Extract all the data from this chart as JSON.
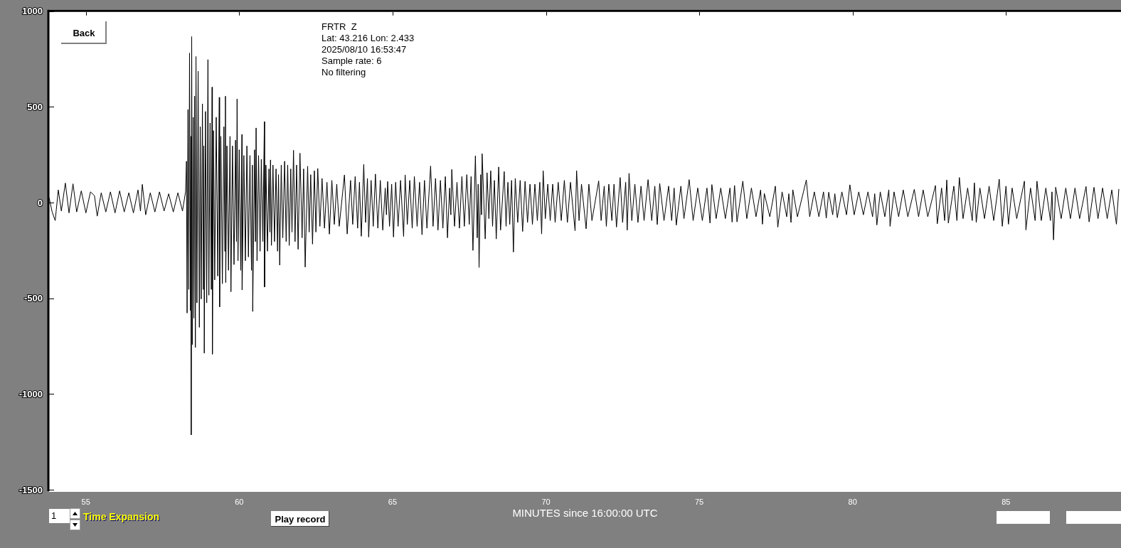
{
  "chart_data": {
    "type": "line",
    "title": "FRTR  Z",
    "annotations": [
      "Lat: 43.216 Lon: 2.433",
      "2025/08/10 16:53:47",
      "Sample rate: 6",
      "No filtering",
      "Back",
      "1",
      "Time Expansion",
      "Play record"
    ],
    "xlabel": "MINUTES since 16:00:00 UTC",
    "color": "#000000",
    "xlim": [
      53.8,
      88.75
    ],
    "xticks": [
      55,
      60,
      65,
      70,
      75,
      80,
      85
    ],
    "ylim": [
      -1500,
      1000
    ],
    "yticks": [
      -1500,
      -1000,
      -500,
      0,
      500,
      1000
    ],
    "x": [
      53.8,
      53.9,
      54,
      54.1,
      54.2,
      54.33,
      54.45,
      54.58,
      54.7,
      54.85,
      55,
      55.15,
      55.28,
      55.37,
      55.5,
      55.65,
      55.8,
      55.95,
      56.1,
      56.25,
      56.4,
      56.55,
      56.7,
      56.78,
      56.84,
      56.95,
      57.1,
      57.25,
      57.4,
      57.55,
      57.7,
      57.85,
      58,
      58.15,
      58.25,
      58.28,
      58.3,
      58.33,
      58.355,
      58.38,
      58.41,
      58.425,
      58.432,
      58.45,
      58.47,
      58.5,
      58.52,
      58.545,
      58.57,
      58.59,
      58.62,
      58.66,
      58.7,
      58.73,
      58.76,
      58.8,
      58.83,
      58.845,
      58.86,
      58.9,
      58.94,
      58.98,
      59.01,
      59.05,
      59.09,
      59.115,
      59.125,
      59.16,
      59.2,
      59.25,
      59.3,
      59.35,
      59.36,
      59.4,
      59.45,
      59.5,
      59.53,
      59.55,
      59.56,
      59.6,
      59.65,
      59.7,
      59.73,
      59.78,
      59.83,
      59.88,
      59.91,
      59.93,
      59.96,
      60,
      60.05,
      60.09,
      60.095,
      60.15,
      60.2,
      60.25,
      60.3,
      60.35,
      60.4,
      60.43,
      60.44,
      60.5,
      60.53,
      60.55,
      60.58,
      60.63,
      60.68,
      60.72,
      60.77,
      60.82,
      60.825,
      60.87,
      60.92,
      60.97,
      61,
      61.02,
      61.05,
      61.1,
      61.15,
      61.2,
      61.25,
      61.28,
      61.32,
      61.37,
      61.42,
      61.48,
      61.53,
      61.58,
      61.63,
      61.68,
      61.72,
      61.77,
      61.82,
      61.87,
      61.92,
      61.98,
      62.05,
      62.1,
      62.15,
      62.23,
      62.28,
      62.33,
      62.39,
      62.45,
      62.5,
      62.56,
      62.63,
      62.7,
      62.78,
      62.86,
      62.94,
      63.02,
      63.1,
      63.18,
      63.26,
      63.43,
      63.52,
      63.63,
      63.7,
      63.78,
      63.86,
      63.92,
      63.98,
      64.06,
      64.12,
      64.18,
      64.22,
      64.3,
      64.37,
      64.44,
      64.52,
      64.6,
      64.68,
      64.76,
      64.8,
      64.84,
      64.9,
      64.97,
      65.03,
      65.1,
      65.18,
      65.26,
      65.36,
      65.41,
      65.48,
      65.56,
      65.64,
      65.71,
      65.8,
      65.88,
      65.96,
      66.04,
      66.12,
      66.24,
      66.32,
      66.4,
      66.48,
      66.56,
      66.64,
      66.72,
      66.79,
      66.86,
      66.9,
      66.93,
      67.02,
      67.1,
      67.18,
      67.26,
      67.34,
      67.42,
      67.5,
      67.56,
      67.62,
      67.7,
      67.76,
      67.79,
      67.82,
      67.87,
      67.9,
      67.92,
      68.02,
      68.08,
      68.14,
      68.2,
      68.26,
      68.32,
      68.38,
      68.46,
      68.52,
      68.64,
      68.7,
      68.76,
      68.82,
      68.88,
      68.94,
      69,
      69.08,
      69.16,
      69.24,
      69.32,
      69.4,
      69.48,
      69.56,
      69.64,
      69.72,
      69.8,
      69.86,
      69.91,
      69.98,
      70.06,
      70.14,
      70.22,
      70.3,
      70.4,
      70.5,
      70.6,
      70.7,
      70.8,
      70.95,
      71,
      71.08,
      71.16,
      71.31,
      71.4,
      71.5,
      71.72,
      71.8,
      71.9,
      71.97,
      72.05,
      72.15,
      72.22,
      72.3,
      72.42,
      72.5,
      72.6,
      72.65,
      72.71,
      72.8,
      72.9,
      73,
      73.1,
      73.2,
      73.33,
      73.45,
      73.55,
      73.63,
      73.71,
      73.85,
      74,
      74.1,
      74.18,
      74.25,
      74.4,
      74.5,
      74.67,
      74.8,
      74.95,
      75.1,
      75.25,
      75.35,
      75.41,
      75.55,
      75.7,
      75.85,
      76,
      76.07,
      76.15,
      76.23,
      76.42,
      76.55,
      76.7,
      76.85,
      77,
      77.06,
      77.12,
      77.3,
      77.48,
      77.56,
      77.7,
      77.85,
      77.92,
      77.99,
      78.05,
      78.2,
      78.49,
      78.6,
      78.75,
      78.9,
      79.05,
      79.14,
      79.22,
      79.35,
      79.42,
      79.5,
      79.65,
      79.8,
      79.91,
      80.05,
      80.2,
      80.35,
      80.5,
      80.65,
      80.72,
      80.79,
      80.9,
      81.05,
      81.18,
      81.22,
      81.35,
      81.5,
      81.65,
      81.8,
      82.01,
      82.15,
      82.3,
      82.45,
      82.7,
      82.76,
      82.9,
      83,
      83.07,
      83.12,
      83.3,
      83.4,
      83.48,
      83.6,
      83.75,
      83.9,
      83.97,
      84.03,
      84.15,
      84.3,
      84.45,
      84.6,
      84.78,
      84.88,
      85,
      85.08,
      85.2,
      85.35,
      85.6,
      85.65,
      85.8,
      85.95,
      86.01,
      86.15,
      86.3,
      86.45,
      86.5,
      86.55,
      86.62,
      86.8,
      86.95,
      87.1,
      87.25,
      87.4,
      87.61,
      87.71,
      87.87,
      88,
      88.15,
      88.3,
      88.45,
      88.6,
      88.68
    ],
    "values": [
      30,
      -45,
      -90,
      70,
      -40,
      106,
      -50,
      102,
      -45,
      65,
      -50,
      60,
      40,
      -67,
      55,
      -45,
      60,
      -50,
      65,
      -45,
      55,
      -50,
      70,
      -40,
      99,
      -60,
      55,
      -45,
      60,
      -40,
      50,
      -45,
      55,
      -40,
      60,
      220,
      -573,
      490,
      -450,
      785,
      -560,
      350,
      -1210,
      871,
      -738,
      450,
      -600,
      560,
      -753,
      767,
      -520,
      690,
      -648,
      400,
      -500,
      520,
      -450,
      300,
      -783,
      480,
      -520,
      751,
      -480,
      420,
      -450,
      607,
      -788,
      380,
      -400,
      450,
      -380,
      554,
      -541,
      350,
      -420,
      400,
      -250,
      560,
      -414,
      300,
      -350,
      350,
      -462,
      300,
      -320,
      330,
      -200,
      545,
      -300,
      280,
      -350,
      360,
      -452,
      250,
      -300,
      300,
      -280,
      250,
      -350,
      200,
      -565,
      280,
      -200,
      394,
      -300,
      250,
      -250,
      230,
      -200,
      427,
      -437,
      200,
      -250,
      180,
      -150,
      227,
      -220,
      200,
      -200,
      180,
      -250,
      150,
      -323,
      200,
      -180,
      220,
      -200,
      200,
      -220,
      180,
      -150,
      277,
      -200,
      200,
      -240,
      262,
      -180,
      180,
      -333,
      194,
      -150,
      150,
      -213,
      170,
      -150,
      182,
      -120,
      130,
      -130,
      110,
      -161,
      120,
      -110,
      100,
      -120,
      148,
      -160,
      120,
      -110,
      140,
      -130,
      110,
      -172,
      203,
      -100,
      130,
      -176,
      120,
      -120,
      153,
      -130,
      120,
      -140,
      80,
      -60,
      114,
      -120,
      100,
      -176,
      110,
      -120,
      120,
      -173,
      148,
      -110,
      120,
      -130,
      140,
      -120,
      110,
      -164,
      120,
      -130,
      195,
      -120,
      130,
      -140,
      120,
      -130,
      140,
      -180,
      80,
      -60,
      177,
      -120,
      110,
      -130,
      140,
      -120,
      150,
      -110,
      140,
      -246,
      248,
      -180,
      100,
      -335,
      150,
      -60,
      259,
      -186,
      160,
      -80,
      170,
      -120,
      120,
      -186,
      190,
      -140,
      166,
      -120,
      110,
      -110,
      120,
      -255,
      130,
      -100,
      120,
      -147,
      115,
      -100,
      100,
      -110,
      100,
      -90,
      110,
      -160,
      170,
      -80,
      100,
      -90,
      100,
      -100,
      110,
      -90,
      120,
      -100,
      110,
      -143,
      170,
      -90,
      100,
      -133,
      100,
      -90,
      117,
      -90,
      90,
      -120,
      100,
      -90,
      100,
      -124,
      135,
      -100,
      110,
      -140,
      157,
      -90,
      100,
      -100,
      90,
      -90,
      124,
      -90,
      90,
      -111,
      104,
      -90,
      90,
      -90,
      80,
      -114,
      90,
      -80,
      124,
      -90,
      80,
      -90,
      80,
      -103,
      98,
      -80,
      80,
      -80,
      80,
      -98,
      93,
      -97,
      116,
      -80,
      80,
      -70,
      70,
      -109,
      52,
      -70,
      90,
      -125,
      60,
      -70,
      50,
      -100,
      71,
      -70,
      122,
      -70,
      60,
      -70,
      60,
      -77,
      58,
      -60,
      50,
      -75,
      60,
      -60,
      97,
      -60,
      60,
      -60,
      60,
      -70,
      50,
      -113,
      60,
      -70,
      71,
      -120,
      60,
      -70,
      70,
      -70,
      73,
      -70,
      70,
      -70,
      93,
      -107,
      80,
      -90,
      122,
      -103,
      90,
      -90,
      135,
      -80,
      80,
      -90,
      107,
      -100,
      80,
      -80,
      90,
      -90,
      126,
      -120,
      90,
      -109,
      80,
      -80,
      116,
      -139,
      80,
      -90,
      116,
      -90,
      80,
      -90,
      60,
      -191,
      84,
      -80,
      80,
      -80,
      80,
      -80,
      88,
      -97,
      84,
      -80,
      80,
      -80,
      70,
      -109,
      75
    ]
  }
}
